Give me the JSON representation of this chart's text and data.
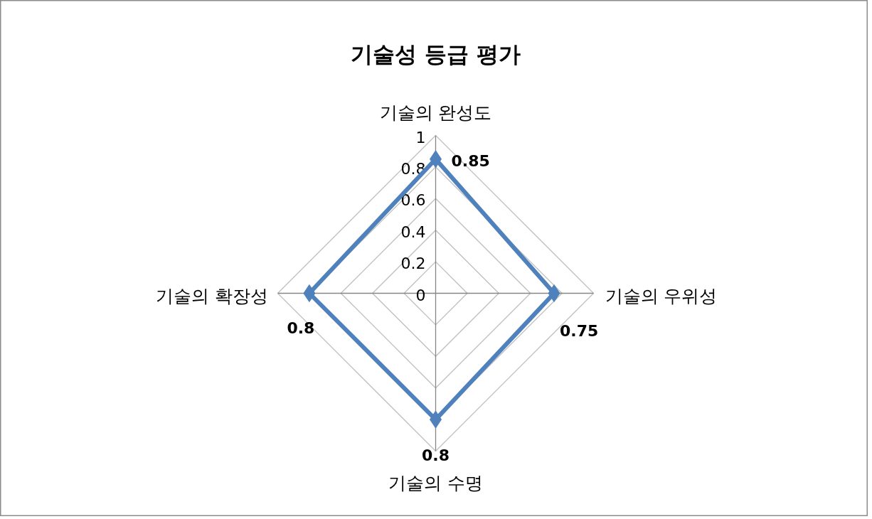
{
  "chart_data": {
    "type": "radar",
    "title": "기술성 등급 평가",
    "categories": [
      "기술의 완성도",
      "기술의 우위성",
      "기술의 수명",
      "기술의 확장성"
    ],
    "series": [
      {
        "color": "#4f81bd",
        "values": [
          0.85,
          0.75,
          0.8,
          0.8
        ]
      }
    ],
    "ylim": [
      0,
      1
    ],
    "yticks": [
      0,
      0.2,
      0.4,
      0.6,
      0.8,
      1
    ],
    "grid": true,
    "marker": "diamond",
    "data_labels": true
  }
}
